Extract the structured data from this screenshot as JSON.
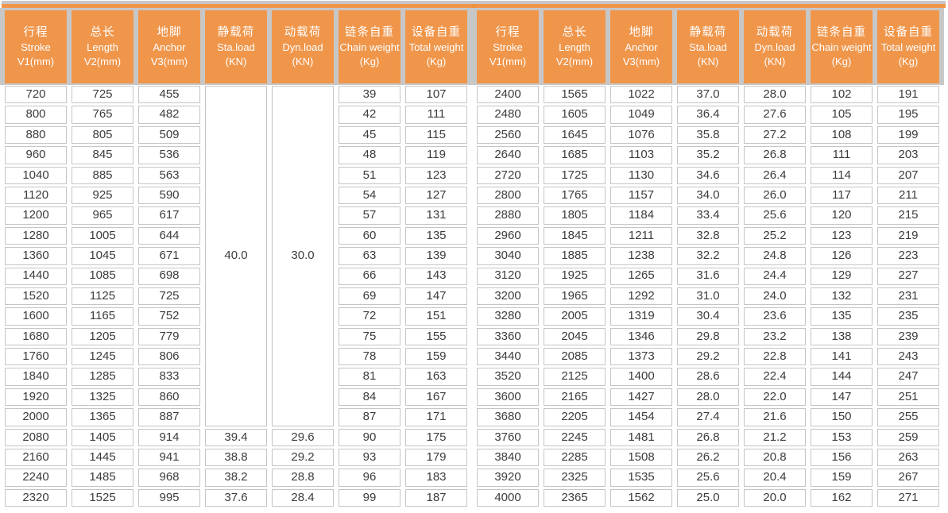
{
  "colors": {
    "header_bg": "#F0964B",
    "accent_divider": "#F0913E",
    "top_gray_rule": "#C7C7C7",
    "cell_border": "#C5C5C5",
    "body_text": "#3C3C3C",
    "header_text": "#FFFFFF"
  },
  "table": {
    "headers": [
      {
        "key": "stroke-v1",
        "zh": "行程",
        "en": "Stroke",
        "unit": "V1(mm)"
      },
      {
        "key": "length-v2",
        "zh": "总长",
        "en": "Length",
        "unit": "V2(mm)"
      },
      {
        "key": "anchor-v3",
        "zh": "地脚",
        "en": "Anchor",
        "unit": "V3(mm)"
      },
      {
        "key": "sta-load",
        "zh": "静载荷",
        "en": "Sta.load",
        "unit": "(KN)"
      },
      {
        "key": "dyn-load",
        "zh": "动载荷",
        "en": "Dyn.load",
        "unit": "(KN)"
      },
      {
        "key": "chain-weight",
        "zh": "链条自重",
        "en": "Chain weight",
        "unit": "(Kg)"
      },
      {
        "key": "total-weight",
        "zh": "设备自重",
        "en": "Total weight",
        "unit": "(Kg)"
      }
    ],
    "left": {
      "merged": {
        "sta": "40.0",
        "dyn": "30.0",
        "span": 17
      },
      "rows": [
        [
          "720",
          "725",
          "455",
          null,
          null,
          "39",
          "107"
        ],
        [
          "800",
          "765",
          "482",
          null,
          null,
          "42",
          "111"
        ],
        [
          "880",
          "805",
          "509",
          null,
          null,
          "45",
          "115"
        ],
        [
          "960",
          "845",
          "536",
          null,
          null,
          "48",
          "119"
        ],
        [
          "1040",
          "885",
          "563",
          null,
          null,
          "51",
          "123"
        ],
        [
          "1120",
          "925",
          "590",
          null,
          null,
          "54",
          "127"
        ],
        [
          "1200",
          "965",
          "617",
          null,
          null,
          "57",
          "131"
        ],
        [
          "1280",
          "1005",
          "644",
          null,
          null,
          "60",
          "135"
        ],
        [
          "1360",
          "1045",
          "671",
          null,
          null,
          "63",
          "139"
        ],
        [
          "1440",
          "1085",
          "698",
          null,
          null,
          "66",
          "143"
        ],
        [
          "1520",
          "1125",
          "725",
          null,
          null,
          "69",
          "147"
        ],
        [
          "1600",
          "1165",
          "752",
          null,
          null,
          "72",
          "151"
        ],
        [
          "1680",
          "1205",
          "779",
          null,
          null,
          "75",
          "155"
        ],
        [
          "1760",
          "1245",
          "806",
          null,
          null,
          "78",
          "159"
        ],
        [
          "1840",
          "1285",
          "833",
          null,
          null,
          "81",
          "163"
        ],
        [
          "1920",
          "1325",
          "860",
          null,
          null,
          "84",
          "167"
        ],
        [
          "2000",
          "1365",
          "887",
          null,
          null,
          "87",
          "171"
        ],
        [
          "2080",
          "1405",
          "914",
          "39.4",
          "29.6",
          "90",
          "175"
        ],
        [
          "2160",
          "1445",
          "941",
          "38.8",
          "29.2",
          "93",
          "179"
        ],
        [
          "2240",
          "1485",
          "968",
          "38.2",
          "28.8",
          "96",
          "183"
        ],
        [
          "2320",
          "1525",
          "995",
          "37.6",
          "28.4",
          "99",
          "187"
        ]
      ]
    },
    "right": {
      "merged": null,
      "rows": [
        [
          "2400",
          "1565",
          "1022",
          "37.0",
          "28.0",
          "102",
          "191"
        ],
        [
          "2480",
          "1605",
          "1049",
          "36.4",
          "27.6",
          "105",
          "195"
        ],
        [
          "2560",
          "1645",
          "1076",
          "35.8",
          "27.2",
          "108",
          "199"
        ],
        [
          "2640",
          "1685",
          "1103",
          "35.2",
          "26.8",
          "111",
          "203"
        ],
        [
          "2720",
          "1725",
          "1130",
          "34.6",
          "26.4",
          "114",
          "207"
        ],
        [
          "2800",
          "1765",
          "1157",
          "34.0",
          "26.0",
          "117",
          "211"
        ],
        [
          "2880",
          "1805",
          "1184",
          "33.4",
          "25.6",
          "120",
          "215"
        ],
        [
          "2960",
          "1845",
          "1211",
          "32.8",
          "25.2",
          "123",
          "219"
        ],
        [
          "3040",
          "1885",
          "1238",
          "32.2",
          "24.8",
          "126",
          "223"
        ],
        [
          "3120",
          "1925",
          "1265",
          "31.6",
          "24.4",
          "129",
          "227"
        ],
        [
          "3200",
          "1965",
          "1292",
          "31.0",
          "24.0",
          "132",
          "231"
        ],
        [
          "3280",
          "2005",
          "1319",
          "30.4",
          "23.6",
          "135",
          "235"
        ],
        [
          "3360",
          "2045",
          "1346",
          "29.8",
          "23.2",
          "138",
          "239"
        ],
        [
          "3440",
          "2085",
          "1373",
          "29.2",
          "22.8",
          "141",
          "243"
        ],
        [
          "3520",
          "2125",
          "1400",
          "28.6",
          "22.4",
          "144",
          "247"
        ],
        [
          "3600",
          "2165",
          "1427",
          "28.0",
          "22.0",
          "147",
          "251"
        ],
        [
          "3680",
          "2205",
          "1454",
          "27.4",
          "21.6",
          "150",
          "255"
        ],
        [
          "3760",
          "2245",
          "1481",
          "26.8",
          "21.2",
          "153",
          "259"
        ],
        [
          "3840",
          "2285",
          "1508",
          "26.2",
          "20.8",
          "156",
          "263"
        ],
        [
          "3920",
          "2325",
          "1535",
          "25.6",
          "20.4",
          "159",
          "267"
        ],
        [
          "4000",
          "2365",
          "1562",
          "25.0",
          "20.0",
          "162",
          "271"
        ]
      ]
    }
  }
}
